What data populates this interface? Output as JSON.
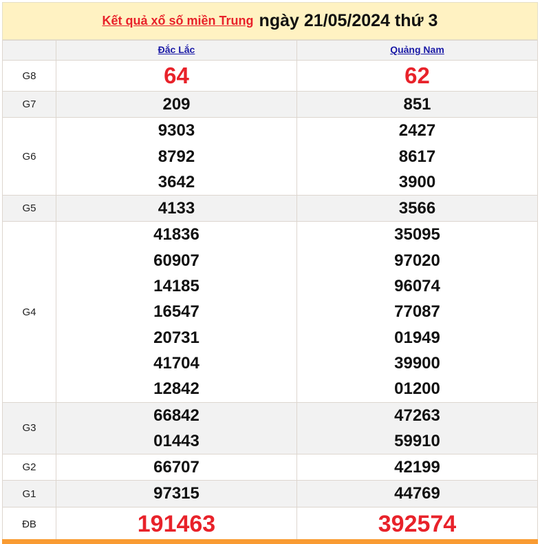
{
  "header": {
    "link": "Kết quả xổ số miền Trung",
    "date_text": "ngày 21/05/2024 thứ 3"
  },
  "provinces": [
    "Đắc Lắc",
    "Quảng Nam"
  ],
  "prizes": [
    {
      "label": "G8",
      "values": [
        [
          "64"
        ],
        [
          "62"
        ]
      ]
    },
    {
      "label": "G7",
      "values": [
        [
          "209"
        ],
        [
          "851"
        ]
      ]
    },
    {
      "label": "G6",
      "values": [
        [
          "9303",
          "8792",
          "3642"
        ],
        [
          "2427",
          "8617",
          "3900"
        ]
      ]
    },
    {
      "label": "G5",
      "values": [
        [
          "4133"
        ],
        [
          "3566"
        ]
      ]
    },
    {
      "label": "G4",
      "values": [
        [
          "41836",
          "60907",
          "14185",
          "16547",
          "20731",
          "41704",
          "12842"
        ],
        [
          "35095",
          "97020",
          "96074",
          "77087",
          "01949",
          "39900",
          "01200"
        ]
      ]
    },
    {
      "label": "G3",
      "values": [
        [
          "66842",
          "01443"
        ],
        [
          "47263",
          "59910"
        ]
      ]
    },
    {
      "label": "G2",
      "values": [
        [
          "66707"
        ],
        [
          "42199"
        ]
      ]
    },
    {
      "label": "G1",
      "values": [
        [
          "97315"
        ],
        [
          "44769"
        ]
      ]
    },
    {
      "label": "ĐB",
      "values": [
        [
          "191463"
        ],
        [
          "392574"
        ]
      ]
    }
  ],
  "colors": {
    "highlight": "#e8222a",
    "header_bg": "#fff2c2",
    "accent_bar": "#f99b32",
    "link": "#1a1aa6"
  }
}
